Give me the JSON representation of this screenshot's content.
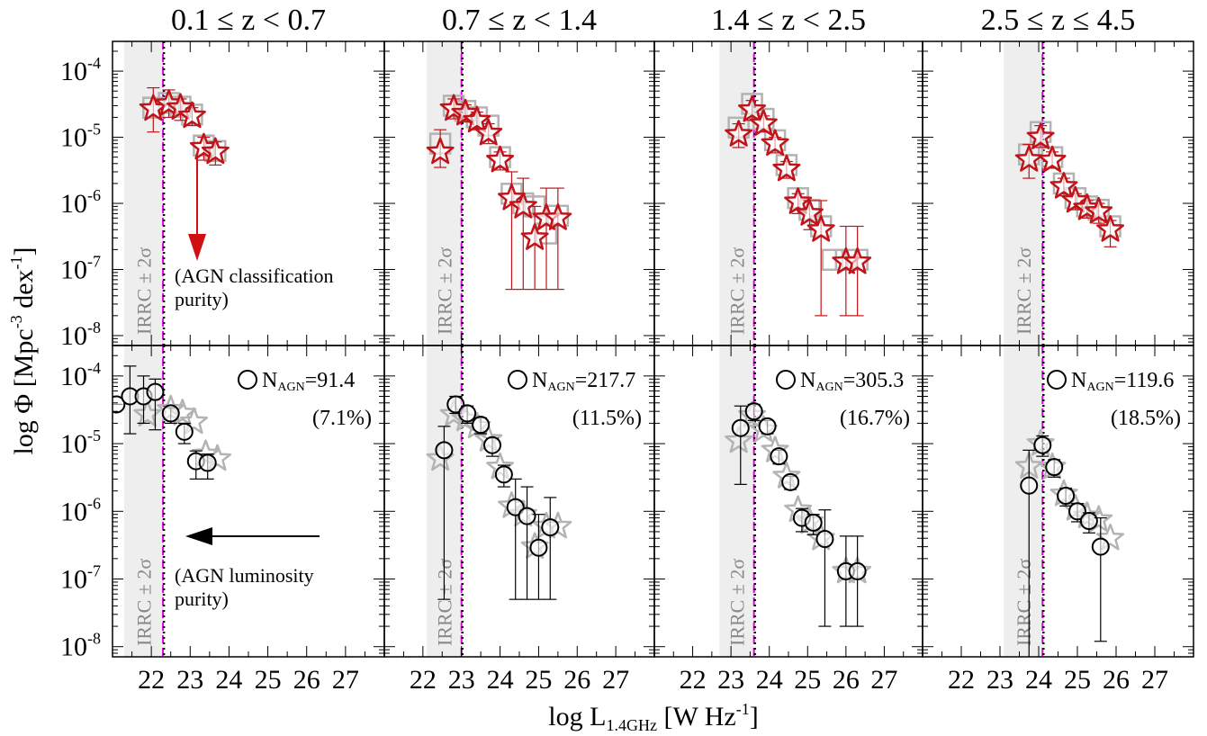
{
  "figure": {
    "xlabel_main": "log L",
    "xlabel_sub": "1.4GHz",
    "xlabel_unit": " [W Hz",
    "xlabel_unit_sup": "-1",
    "xlabel_close": "]",
    "ylabel_main": "log Φ [Mpc",
    "ylabel_sup1": "-3",
    "ylabel_mid": " dex",
    "ylabel_sup2": "-1",
    "ylabel_close": "]",
    "irrc_label": "IRRC ± 2σ",
    "nagn_label": "N",
    "nagn_sub": "AGN",
    "top_arrow_annotation": [
      "(AGN classification",
      "purity)"
    ],
    "bottom_arrow_annotation": [
      "(AGN luminosity",
      "purity)"
    ],
    "y_tick_labels": [
      {
        "value": -8,
        "base": "10",
        "exp": "-8"
      },
      {
        "value": -7,
        "base": "10",
        "exp": "-7"
      },
      {
        "value": -6,
        "base": "10",
        "exp": "-6"
      },
      {
        "value": -5,
        "base": "10",
        "exp": "-5"
      },
      {
        "value": -4,
        "base": "10",
        "exp": "-4"
      }
    ],
    "x_tick_labels": [
      "22",
      "23",
      "24",
      "25",
      "26",
      "27"
    ],
    "colors": {
      "red_star": "#c0141a",
      "grey_marker": "#b3b3b3",
      "black_marker": "#000000",
      "irrc_band": "#eeeeee",
      "magenta_line": "#e000e0",
      "arrow_red": "#d01010"
    }
  },
  "chart_data": [
    {
      "type": "scatter",
      "panel": "top-1",
      "title": "0.1 ≤ z < 0.7",
      "xlim": [
        21,
        28
      ],
      "ylim_log10": [
        -8.15,
        -3.55
      ],
      "log_y": true,
      "irrc_band": [
        21.3,
        22.3
      ],
      "irrc_line": 22.3,
      "series": [
        {
          "marker": "square-grey",
          "x": [
            22.05,
            22.45,
            22.75,
            23.05,
            23.35,
            23.65
          ],
          "y": [
            2.8e-05,
            3.3e-05,
            2.9e-05,
            2.2e-05,
            7.5e-06,
            6.2e-06
          ]
        },
        {
          "marker": "star-red",
          "x": [
            22.05,
            22.45,
            22.75,
            23.05,
            23.35,
            23.65
          ],
          "y": [
            2.7e-05,
            3.2e-05,
            2.8e-05,
            2.1e-05,
            7e-06,
            6e-06
          ],
          "yerr_lo": [
            1.2e-05,
            2e-05,
            1.8e-05,
            1.5e-05,
            4.5e-06,
            3.8e-06
          ],
          "yerr_hi": [
            5.6e-05,
            5.2e-05,
            3.8e-05,
            2.8e-05,
            1e-05,
            8.5e-06
          ]
        }
      ]
    },
    {
      "type": "scatter",
      "panel": "top-2",
      "title": "0.7 ≤ z < 1.4",
      "xlim": [
        21,
        28
      ],
      "ylim_log10": [
        -8.15,
        -3.55
      ],
      "log_y": true,
      "irrc_band": [
        22.1,
        23.0
      ],
      "irrc_line": 23.0,
      "series": [
        {
          "marker": "square-grey",
          "x": [
            22.45,
            22.8,
            23.1,
            23.4,
            23.7,
            24.0,
            24.3,
            24.6,
            24.9,
            25.2,
            25.5
          ],
          "y": [
            8e-06,
            3e-05,
            2.5e-05,
            2e-05,
            1.5e-05,
            5e-06,
            1.4e-06,
            1e-06,
            9e-07,
            3.5e-07,
            6.5e-07
          ]
        },
        {
          "marker": "star-red",
          "x": [
            22.45,
            22.8,
            23.1,
            23.4,
            23.7,
            24.0,
            24.3,
            24.6,
            24.9,
            25.2,
            25.5
          ],
          "y": [
            6e-06,
            2.7e-05,
            2.3e-05,
            1.8e-05,
            1.15e-05,
            4.5e-06,
            1.2e-06,
            9e-07,
            3e-07,
            6e-07,
            6e-07
          ],
          "yerr_lo": [
            3.5e-06,
            1.9e-05,
            1.7e-05,
            1.3e-05,
            8e-06,
            3.2e-06,
            5e-08,
            5e-08,
            5e-08,
            5e-08,
            5e-08
          ],
          "yerr_hi": [
            1.3e-05,
            3.8e-05,
            3.1e-05,
            2.4e-05,
            1.6e-05,
            6e-06,
            3e-06,
            2.4e-06,
            9e-07,
            1.7e-06,
            1.7e-06
          ]
        }
      ]
    },
    {
      "type": "scatter",
      "panel": "top-3",
      "title": "1.4 ≤ z < 2.5",
      "xlim": [
        21,
        28
      ],
      "ylim_log10": [
        -8.15,
        -3.55
      ],
      "log_y": true,
      "irrc_band": [
        22.7,
        23.6
      ],
      "irrc_line": 23.6,
      "series": [
        {
          "marker": "square-grey",
          "x": [
            23.2,
            23.55,
            23.85,
            24.15,
            24.45,
            24.75,
            25.05,
            25.35,
            25.65,
            26.0,
            26.3
          ],
          "y": [
            1.4e-05,
            3.2e-05,
            1.9e-05,
            9e-06,
            3.8e-06,
            1.2e-06,
            8e-07,
            4.5e-07,
            1.4e-07,
            1.4e-07,
            1.4e-07
          ]
        },
        {
          "marker": "star-red",
          "x": [
            23.2,
            23.55,
            23.85,
            24.15,
            24.45,
            24.75,
            25.05,
            25.35,
            26.0,
            26.3
          ],
          "y": [
            1.1e-05,
            2.6e-05,
            1.6e-05,
            8e-06,
            3.3e-06,
            1.05e-06,
            7e-07,
            4e-07,
            1.3e-07,
            1.3e-07
          ],
          "yerr_lo": [
            7e-06,
            1.8e-05,
            1.2e-05,
            5.8e-06,
            2.4e-06,
            7e-07,
            4e-07,
            2e-08,
            2e-08,
            2e-08
          ],
          "yerr_hi": [
            1.6e-05,
            3.6e-05,
            2.1e-05,
            1e-05,
            4.3e-06,
            1.4e-06,
            1.1e-06,
            1.1e-06,
            4.5e-07,
            4.5e-07
          ]
        }
      ]
    },
    {
      "type": "scatter",
      "panel": "top-4",
      "title": "2.5 ≤ z ≤ 4.5",
      "xlim": [
        21,
        28
      ],
      "ylim_log10": [
        -8.15,
        -3.55
      ],
      "log_y": true,
      "irrc_band": [
        23.1,
        24.1
      ],
      "irrc_line": 24.1,
      "series": [
        {
          "marker": "square-grey",
          "x": [
            23.75,
            24.05,
            24.35,
            24.65,
            24.95,
            25.25,
            25.55,
            25.85
          ],
          "y": [
            5.5e-06,
            1.2e-05,
            5e-06,
            2e-06,
            1.2e-06,
            9e-07,
            8e-07,
            4.5e-07
          ]
        },
        {
          "marker": "star-red",
          "x": [
            23.75,
            24.05,
            24.35,
            24.65,
            24.95,
            25.25,
            25.55,
            25.85
          ],
          "y": [
            4.6e-06,
            1e-05,
            4.5e-06,
            1.8e-06,
            1.1e-06,
            8.5e-07,
            7.5e-07,
            4e-07
          ],
          "yerr_lo": [
            2.4e-06,
            7e-06,
            3.4e-06,
            1.3e-06,
            8e-07,
            6e-07,
            5e-07,
            2.2e-07
          ],
          "yerr_hi": [
            7.8e-06,
            1.5e-05,
            6e-06,
            2.4e-06,
            1.4e-06,
            1.1e-06,
            1e-06,
            5.5e-07
          ]
        }
      ]
    },
    {
      "type": "scatter",
      "panel": "bottom-1",
      "xlim": [
        21,
        28
      ],
      "ylim_log10": [
        -8.15,
        -3.55
      ],
      "log_y": true,
      "irrc_band": [
        21.3,
        22.3
      ],
      "irrc_line": 22.3,
      "n_agn": "=91.4",
      "fraction": "(7.1%)",
      "series": [
        {
          "marker": "star-grey",
          "x": [
            21.9,
            22.5,
            22.8,
            23.1,
            23.4,
            23.7
          ],
          "y": [
            2.7e-05,
            3.2e-05,
            2.8e-05,
            2.1e-05,
            7e-06,
            6e-06
          ]
        },
        {
          "marker": "circle-black",
          "x": [
            21.1,
            21.45,
            21.8,
            22.1,
            22.5,
            22.85,
            23.15,
            23.45
          ],
          "y": [
            3.8e-05,
            5e-05,
            5e-05,
            5.8e-05,
            2.8e-05,
            1.5e-05,
            5.5e-06,
            5.2e-06
          ],
          "yerr_lo": [
            3.8e-05,
            1.4e-05,
            2e-05,
            1.6e-05,
            2e-05,
            1e-05,
            3e-06,
            3e-06
          ],
          "yerr_hi": [
            3.8e-05,
            0.00014,
            0.0001,
            9e-05,
            3.4e-05,
            2e-05,
            7.8e-06,
            7e-06
          ]
        }
      ]
    },
    {
      "type": "scatter",
      "panel": "bottom-2",
      "xlim": [
        21,
        28
      ],
      "ylim_log10": [
        -8.15,
        -3.55
      ],
      "log_y": true,
      "irrc_band": [
        22.1,
        23.0
      ],
      "irrc_line": 23.0,
      "n_agn": "=217.7",
      "fraction": "(11.5%)",
      "series": [
        {
          "marker": "star-grey",
          "x": [
            22.45,
            22.8,
            23.1,
            23.4,
            23.7,
            24.0,
            24.3,
            24.6,
            24.9,
            25.2,
            25.5
          ],
          "y": [
            6e-06,
            2.7e-05,
            2.3e-05,
            1.8e-05,
            1.15e-05,
            4.5e-06,
            1.2e-06,
            9e-07,
            3e-07,
            6e-07,
            6e-07
          ]
        },
        {
          "marker": "circle-black",
          "x": [
            22.55,
            22.85,
            23.15,
            23.5,
            23.8,
            24.1,
            24.4,
            24.7,
            25.0,
            25.3
          ],
          "y": [
            8e-06,
            3.8e-05,
            2.8e-05,
            1.9e-05,
            9.5e-06,
            3.5e-06,
            1.15e-06,
            8.5e-07,
            2.9e-07,
            5.8e-07
          ],
          "yerr_lo": [
            5e-08,
            2.8e-05,
            2e-05,
            1.4e-05,
            6.5e-06,
            2.3e-06,
            5e-08,
            5e-08,
            5e-08,
            5e-08
          ],
          "yerr_hi": [
            1.8e-05,
            5e-05,
            3.6e-05,
            2.4e-05,
            1.2e-05,
            4.8e-06,
            3e-06,
            2.3e-06,
            9e-07,
            1.6e-06
          ]
        }
      ]
    },
    {
      "type": "scatter",
      "panel": "bottom-3",
      "xlim": [
        21,
        28
      ],
      "ylim_log10": [
        -8.15,
        -3.55
      ],
      "log_y": true,
      "irrc_band": [
        22.7,
        23.6
      ],
      "irrc_line": 23.6,
      "n_agn": "=305.3",
      "fraction": "(16.7%)",
      "series": [
        {
          "marker": "star-grey",
          "x": [
            23.2,
            23.55,
            23.85,
            24.15,
            24.45,
            24.75,
            25.05,
            25.35,
            26.0,
            26.3
          ],
          "y": [
            1.1e-05,
            2.6e-05,
            1.6e-05,
            8e-06,
            3.3e-06,
            1.05e-06,
            7e-07,
            4e-07,
            1.3e-07,
            1.3e-07
          ]
        },
        {
          "marker": "circle-black",
          "x": [
            23.25,
            23.6,
            23.95,
            24.25,
            24.55,
            24.85,
            25.15,
            25.45,
            26.0,
            26.3
          ],
          "y": [
            1.7e-05,
            3e-05,
            1.8e-05,
            6.5e-06,
            2.7e-06,
            8e-07,
            6.8e-07,
            3.9e-07,
            1.3e-07,
            1.3e-07
          ],
          "yerr_lo": [
            2.5e-06,
            2.2e-05,
            1.4e-05,
            5e-06,
            2.1e-06,
            5e-07,
            4.5e-07,
            2e-08,
            2e-08,
            2e-08
          ],
          "yerr_hi": [
            3.6e-05,
            3.8e-05,
            2.2e-05,
            8e-06,
            3.3e-06,
            1.1e-06,
            9e-07,
            1.05e-06,
            4.3e-07,
            4.3e-07
          ]
        }
      ]
    },
    {
      "type": "scatter",
      "panel": "bottom-4",
      "xlim": [
        21,
        28
      ],
      "ylim_log10": [
        -8.15,
        -3.55
      ],
      "log_y": true,
      "irrc_band": [
        23.1,
        24.1
      ],
      "irrc_line": 24.1,
      "n_agn": "=119.6",
      "fraction": "(18.5%)",
      "series": [
        {
          "marker": "star-grey",
          "x": [
            23.75,
            24.05,
            24.35,
            24.65,
            24.95,
            25.25,
            25.55,
            25.85
          ],
          "y": [
            4.6e-06,
            1e-05,
            4.5e-06,
            1.8e-06,
            1.1e-06,
            8.5e-07,
            7.5e-07,
            4e-07
          ]
        },
        {
          "marker": "circle-black",
          "x": [
            23.75,
            24.1,
            24.4,
            24.7,
            25.0,
            25.3,
            25.6
          ],
          "y": [
            2.4e-06,
            9.5e-06,
            4.5e-06,
            1.7e-06,
            1e-06,
            7.2e-07,
            3e-07
          ],
          "yerr_lo": [
            3e-09,
            6.5e-06,
            3.2e-06,
            1.2e-06,
            7e-07,
            4.8e-07,
            1.2e-08
          ],
          "yerr_hi": [
            8e-06,
            1.3e-05,
            5.8e-06,
            2.2e-06,
            1.3e-06,
            9.5e-07,
            8e-07
          ]
        }
      ]
    }
  ]
}
